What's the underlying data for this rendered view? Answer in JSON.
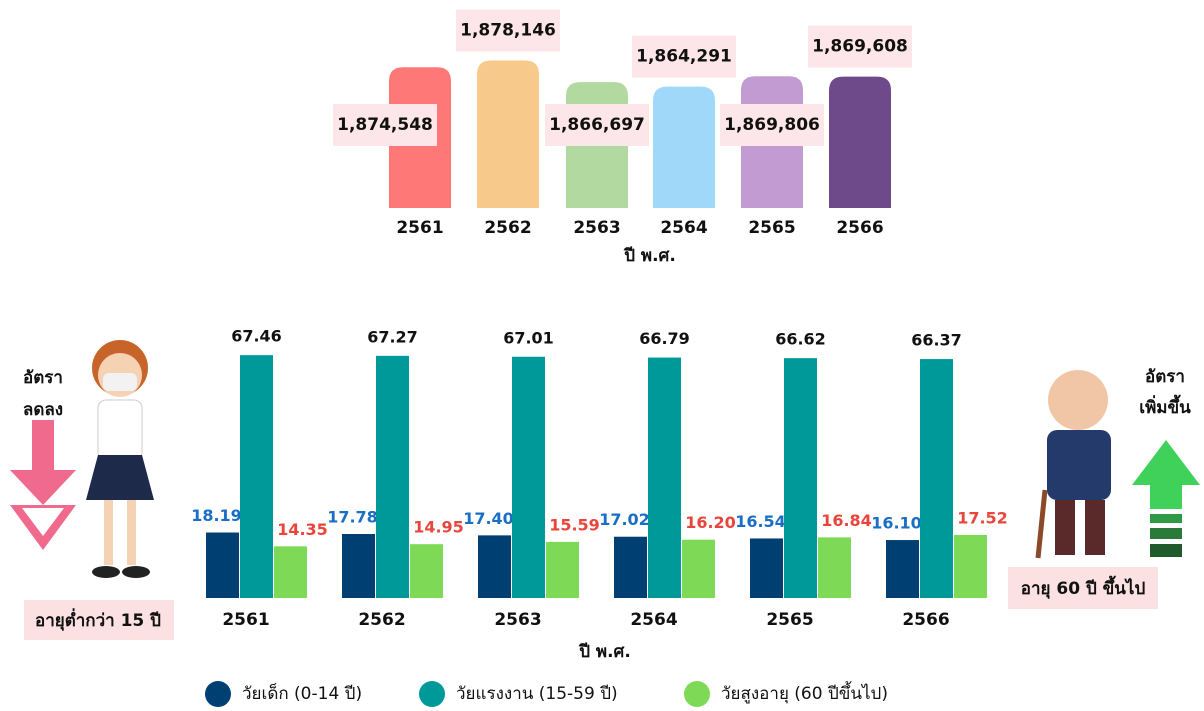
{
  "chart_data": [
    {
      "type": "bar",
      "x_label": "ปี พ.ศ.",
      "categories": [
        "2561",
        "2562",
        "2563",
        "2564",
        "2565",
        "2566"
      ],
      "values": [
        1874548,
        1878146,
        1866697,
        1864291,
        1869806,
        1869608
      ],
      "value_labels": [
        "1,874,548",
        "1,878,146",
        "1,866,697",
        "1,864,291",
        "1,869,806",
        "1,869,608"
      ],
      "colors": [
        "#ff7878",
        "#f7c98a",
        "#b2d9a0",
        "#9fd8f8",
        "#c39bd3",
        "#6f4a8a"
      ],
      "ylim": [
        1800000,
        1880000
      ]
    },
    {
      "type": "grouped_bar",
      "x_label": "ปี พ.ศ.",
      "categories": [
        "2561",
        "2562",
        "2563",
        "2564",
        "2565",
        "2566"
      ],
      "series": [
        {
          "name": "วัยเด็ก (0-14 ปี)",
          "color": "#003f72",
          "label_color": "#1a6fc4",
          "values": [
            18.19,
            17.78,
            17.4,
            17.02,
            16.54,
            16.1
          ],
          "value_labels": [
            "18.19",
            "17.78",
            "17.40",
            "17.02",
            "16.54",
            "16.10"
          ]
        },
        {
          "name": "วัยแรงงาน (15-59 ปี)",
          "color": "#009999",
          "label_color": "#111111",
          "values": [
            67.46,
            67.27,
            67.01,
            66.79,
            66.62,
            66.37
          ],
          "value_labels": [
            "67.46",
            "67.27",
            "67.01",
            "66.79",
            "66.62",
            "66.37"
          ]
        },
        {
          "name": "วัยสูงอายุ (60 ปีขึ้นไป)",
          "color": "#7ed957",
          "label_color": "#e8453c",
          "values": [
            14.35,
            14.95,
            15.59,
            16.2,
            16.84,
            17.52
          ],
          "value_labels": [
            "14.35",
            "14.95",
            "15.59",
            "16.20",
            "16.84",
            "17.52"
          ]
        }
      ],
      "ylim": [
        0,
        70
      ],
      "annotations": [
        "อัตรา",
        "ลดลง",
        "อายุต่ำกว่า 15 ปี",
        "อัตรา",
        "เพิ่มขึ้น",
        "อายุ 60 ปี ขึ้นไป"
      ]
    }
  ]
}
